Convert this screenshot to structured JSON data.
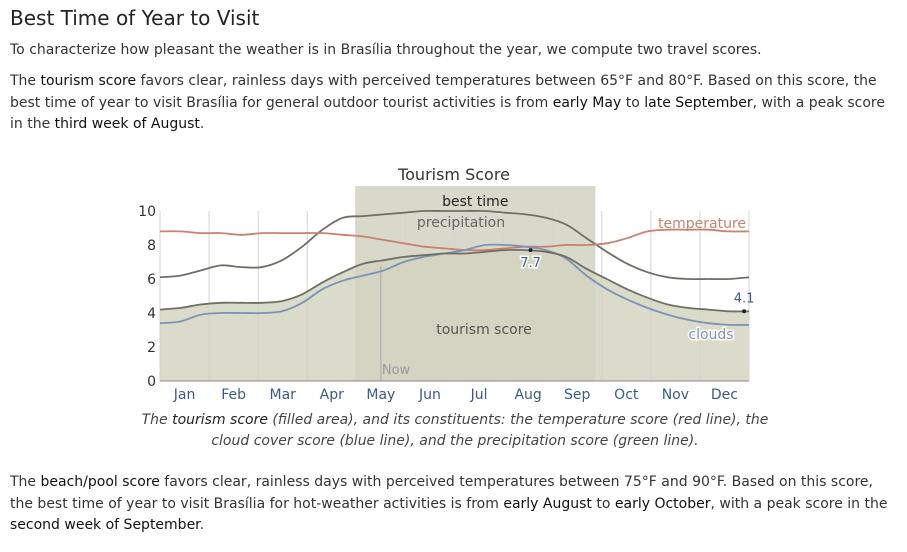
{
  "heading": "Best Time of Year to Visit",
  "intro": "To characterize how pleasant the weather is in Brasília throughout the year, we compute two travel scores.",
  "tourism_paragraph": {
    "p1": "The ",
    "term": "tourism score",
    "p2": " favors clear, rainless days with perceived temperatures between 65°F and 80°F. Based on this score, the best time of year to visit Brasília for general outdoor tourist activities is from ",
    "start": "early May",
    "p3": " to ",
    "end": "late September",
    "p4": ", with a peak score in the ",
    "peak": "third week of August",
    "p5": "."
  },
  "caption": {
    "p1": "The ",
    "term": "tourism score",
    "p2": " (filled area), and its constituents: the temperature score (red line), the cloud cover score (blue line), and the precipitation score (green line)."
  },
  "beach_paragraph": {
    "p1": "The ",
    "term": "beach/pool score",
    "p2": " favors clear, rainless days with perceived temperatures between 75°F and 90°F. Based on this score, the best time of year to visit Brasília for hot-weather activities is from ",
    "start": "early August",
    "p3": " to ",
    "end": "early October",
    "p4": ", with a peak score in the ",
    "peak": "second week of September",
    "p5": "."
  },
  "colors": {
    "temperature": "#c8826e",
    "clouds": "#7b93b4",
    "precipitation": "#6f6f66",
    "tourism_fill": "#d3d3c1",
    "best_time_band": "#d8d8cb",
    "axis_text": "#3a5a8c"
  },
  "chart_data": {
    "type": "area",
    "title": "Tourism Score",
    "xlabel": "",
    "ylabel": "",
    "ylim": [
      0,
      10
    ],
    "yticks": [
      0,
      2,
      4,
      6,
      8,
      10
    ],
    "months": [
      "Jan",
      "Feb",
      "Mar",
      "Apr",
      "May",
      "Jun",
      "Jul",
      "Aug",
      "Sep",
      "Oct",
      "Nov",
      "Dec"
    ],
    "grid": "vertical month lines",
    "best_time_label": "best time",
    "best_time_range": [
      "early May",
      "late September"
    ],
    "now_label": "Now",
    "now_month": "May",
    "series_labels": {
      "precipitation": "precipitation",
      "temperature": "temperature",
      "tourism": "tourism score",
      "clouds": "clouds"
    },
    "annotations": [
      {
        "label": "7.7",
        "at": "mid August",
        "value": 7.7
      },
      {
        "label": "4.1",
        "at": "end of December",
        "value": 4.1
      }
    ],
    "series": [
      {
        "key": "tourism",
        "values": [
          4.2,
          4.3,
          4.5,
          4.6,
          4.6,
          4.6,
          4.7,
          5.1,
          5.8,
          6.4,
          6.9,
          7.1,
          7.3,
          7.4,
          7.5,
          7.5,
          7.6,
          7.7,
          7.7,
          7.6,
          7.3,
          6.6,
          6.0,
          5.4,
          4.9,
          4.5,
          4.3,
          4.2,
          4.1,
          4.1
        ]
      },
      {
        "key": "temperature",
        "values": [
          8.8,
          8.8,
          8.7,
          8.7,
          8.6,
          8.7,
          8.7,
          8.7,
          8.7,
          8.6,
          8.5,
          8.3,
          8.1,
          7.9,
          7.8,
          7.7,
          7.7,
          7.8,
          7.9,
          7.9,
          8.0,
          8.0,
          8.1,
          8.4,
          8.8,
          8.9,
          8.9,
          8.9,
          8.8,
          8.8
        ]
      },
      {
        "key": "clouds",
        "values": [
          3.4,
          3.5,
          3.9,
          4.0,
          4.0,
          4.0,
          4.1,
          4.6,
          5.4,
          5.9,
          6.2,
          6.5,
          7.0,
          7.3,
          7.5,
          7.7,
          8.0,
          8.0,
          7.9,
          7.7,
          7.2,
          6.2,
          5.4,
          4.8,
          4.3,
          3.9,
          3.6,
          3.4,
          3.3,
          3.3
        ]
      },
      {
        "key": "precipitation",
        "values": [
          6.1,
          6.2,
          6.5,
          6.8,
          6.7,
          6.7,
          7.1,
          7.9,
          8.9,
          9.6,
          9.7,
          9.8,
          9.9,
          10.0,
          10.0,
          10.0,
          10.0,
          9.9,
          9.8,
          9.6,
          9.2,
          8.4,
          7.6,
          6.9,
          6.4,
          6.1,
          6.0,
          6.0,
          6.0,
          6.1
        ]
      }
    ]
  }
}
